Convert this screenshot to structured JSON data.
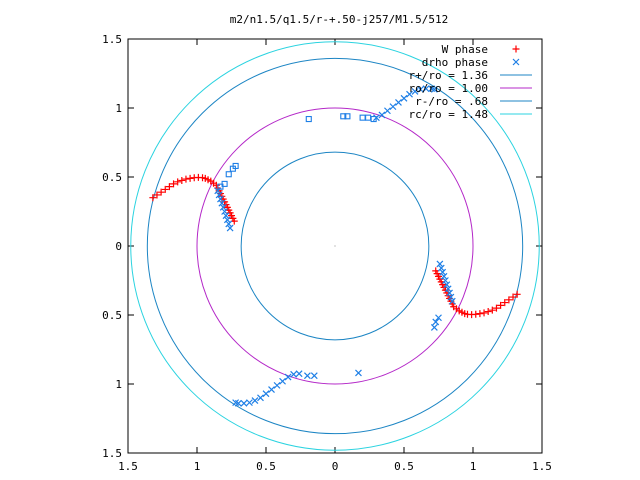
{
  "chart_data": {
    "type": "scatter",
    "title": "m2/n1.5/q1.5/r-+.50-j257/M1.5/512",
    "xlabel": "",
    "ylabel": "",
    "xlim": [
      -1.5,
      1.5
    ],
    "ylim": [
      -1.5,
      1.5
    ],
    "x_ticks": [
      -1.5,
      -1,
      -0.5,
      0,
      0.5,
      1,
      1.5
    ],
    "x_tick_labels": [
      "1.5",
      "1",
      "0.5",
      "0",
      "0.5",
      "1",
      "1.5"
    ],
    "y_ticks": [
      1.5,
      1,
      0.5,
      0,
      -0.5,
      -1,
      -1.5
    ],
    "y_tick_labels": [
      "1.5",
      "1",
      "0.5",
      "0",
      "0.5",
      "1",
      "1.5"
    ],
    "grid": false,
    "legend_position": "top-right",
    "series": [
      {
        "name": "W phase",
        "kind": "points",
        "marker": "plus",
        "color": "#ff0000",
        "points": [
          [
            -1.32,
            0.35
          ],
          [
            -1.29,
            0.37
          ],
          [
            -1.26,
            0.39
          ],
          [
            -1.23,
            0.41
          ],
          [
            -1.2,
            0.43
          ],
          [
            -1.17,
            0.45
          ],
          [
            -1.14,
            0.465
          ],
          [
            -1.11,
            0.475
          ],
          [
            -1.08,
            0.485
          ],
          [
            -1.05,
            0.49
          ],
          [
            -1.02,
            0.495
          ],
          [
            -0.99,
            0.497
          ],
          [
            -0.96,
            0.495
          ],
          [
            -0.94,
            0.49
          ],
          [
            -0.92,
            0.48
          ],
          [
            -0.9,
            0.47
          ],
          [
            -0.88,
            0.455
          ],
          [
            -0.86,
            0.44
          ],
          [
            -0.85,
            0.42
          ],
          [
            -0.84,
            0.4
          ],
          [
            -0.83,
            0.38
          ],
          [
            -0.82,
            0.36
          ],
          [
            -0.81,
            0.34
          ],
          [
            -0.8,
            0.32
          ],
          [
            -0.79,
            0.3
          ],
          [
            -0.78,
            0.28
          ],
          [
            -0.77,
            0.26
          ],
          [
            -0.76,
            0.24
          ],
          [
            -0.75,
            0.22
          ],
          [
            -0.74,
            0.2
          ],
          [
            -0.73,
            0.18
          ],
          [
            1.32,
            -0.35
          ],
          [
            1.29,
            -0.37
          ],
          [
            1.26,
            -0.39
          ],
          [
            1.23,
            -0.41
          ],
          [
            1.2,
            -0.43
          ],
          [
            1.17,
            -0.45
          ],
          [
            1.14,
            -0.465
          ],
          [
            1.11,
            -0.475
          ],
          [
            1.08,
            -0.485
          ],
          [
            1.05,
            -0.49
          ],
          [
            1.02,
            -0.495
          ],
          [
            0.99,
            -0.497
          ],
          [
            0.96,
            -0.495
          ],
          [
            0.94,
            -0.49
          ],
          [
            0.92,
            -0.48
          ],
          [
            0.9,
            -0.47
          ],
          [
            0.88,
            -0.455
          ],
          [
            0.86,
            -0.44
          ],
          [
            0.85,
            -0.42
          ],
          [
            0.84,
            -0.4
          ],
          [
            0.83,
            -0.38
          ],
          [
            0.82,
            -0.36
          ],
          [
            0.81,
            -0.34
          ],
          [
            0.8,
            -0.32
          ],
          [
            0.79,
            -0.3
          ],
          [
            0.78,
            -0.28
          ],
          [
            0.77,
            -0.26
          ],
          [
            0.76,
            -0.24
          ],
          [
            0.75,
            -0.22
          ],
          [
            0.74,
            -0.2
          ],
          [
            0.73,
            -0.18
          ]
        ]
      },
      {
        "name": "drho phase",
        "kind": "points",
        "marker": "cross",
        "color": "#1e7fe6",
        "points": [
          [
            0.3,
            0.93
          ],
          [
            0.34,
            0.95
          ],
          [
            0.38,
            0.98
          ],
          [
            0.42,
            1.01
          ],
          [
            0.46,
            1.04
          ],
          [
            0.5,
            1.07
          ],
          [
            0.54,
            1.1
          ],
          [
            0.58,
            1.12
          ],
          [
            0.62,
            1.135
          ],
          [
            0.66,
            1.14
          ],
          [
            0.7,
            1.14
          ],
          [
            0.72,
            1.135
          ],
          [
            -0.72,
            -1.135
          ],
          [
            -0.7,
            -1.14
          ],
          [
            -0.66,
            -1.14
          ],
          [
            -0.62,
            -1.135
          ],
          [
            -0.58,
            -1.12
          ],
          [
            -0.54,
            -1.1
          ],
          [
            -0.5,
            -1.07
          ],
          [
            -0.46,
            -1.04
          ],
          [
            -0.42,
            -1.01
          ],
          [
            -0.38,
            -0.98
          ],
          [
            -0.34,
            -0.95
          ],
          [
            -0.3,
            -0.93
          ],
          [
            -0.26,
            -0.925
          ],
          [
            -0.2,
            -0.94
          ],
          [
            -0.15,
            -0.94
          ],
          [
            0.17,
            -0.92
          ],
          [
            -0.85,
            0.4
          ],
          [
            -0.84,
            0.37
          ],
          [
            -0.83,
            0.34
          ],
          [
            -0.82,
            0.31
          ],
          [
            -0.81,
            0.28
          ],
          [
            -0.8,
            0.25
          ],
          [
            -0.79,
            0.22
          ],
          [
            -0.78,
            0.19
          ],
          [
            -0.77,
            0.16
          ],
          [
            -0.76,
            0.13
          ],
          [
            0.76,
            -0.13
          ],
          [
            0.77,
            -0.16
          ],
          [
            0.78,
            -0.19
          ],
          [
            0.79,
            -0.22
          ],
          [
            0.8,
            -0.25
          ],
          [
            0.81,
            -0.28
          ],
          [
            0.82,
            -0.31
          ],
          [
            0.83,
            -0.34
          ],
          [
            0.84,
            -0.37
          ],
          [
            0.85,
            -0.4
          ],
          [
            0.75,
            -0.52
          ],
          [
            0.73,
            -0.55
          ],
          [
            0.72,
            -0.59
          ]
        ]
      },
      {
        "name": "",
        "kind": "points",
        "marker": "square",
        "color": "#1e7fe6",
        "points": [
          [
            -0.19,
            0.92
          ],
          [
            0.06,
            0.94
          ],
          [
            0.09,
            0.94
          ],
          [
            0.2,
            0.93
          ],
          [
            0.24,
            0.93
          ],
          [
            0.28,
            0.92
          ],
          [
            -0.77,
            0.52
          ],
          [
            -0.74,
            0.56
          ],
          [
            -0.72,
            0.58
          ],
          [
            -0.8,
            0.45
          ],
          [
            -0.83,
            0.43
          ]
        ]
      },
      {
        "name": "r+/ro = 1.36",
        "kind": "circle",
        "radius": 1.36,
        "color": "#1c85c4"
      },
      {
        "name": "ro/ro = 1.00",
        "kind": "circle",
        "radius": 1.0,
        "color": "#b428c8"
      },
      {
        "name": "r-/ro = .68",
        "kind": "circle",
        "radius": 0.68,
        "color": "#1c85c4"
      },
      {
        "name": "rc/ro = 1.48",
        "kind": "circle",
        "radius": 1.48,
        "color": "#2bd3e0"
      }
    ]
  }
}
